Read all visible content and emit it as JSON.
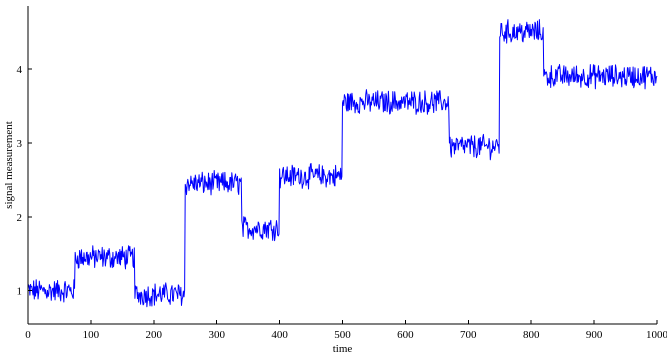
{
  "chart_data": {
    "type": "line",
    "title": "",
    "xlabel": "time",
    "ylabel": "signal measurement",
    "xlim": [
      0,
      1000
    ],
    "ylim": [
      0.55,
      4.85
    ],
    "grid": false,
    "xticks": [
      0,
      100,
      200,
      300,
      400,
      500,
      600,
      700,
      800,
      900,
      1000
    ],
    "yticks": [
      1,
      2,
      3,
      4
    ],
    "line_color": "#0000ff",
    "noise_amplitude": 0.14,
    "series": [
      {
        "segments": [
          {
            "x_start": 0,
            "x_end": 75,
            "level": 1.0
          },
          {
            "x_start": 75,
            "x_end": 170,
            "level": 1.45
          },
          {
            "x_start": 170,
            "x_end": 250,
            "level": 0.95
          },
          {
            "x_start": 250,
            "x_end": 340,
            "level": 2.45
          },
          {
            "x_start": 340,
            "x_end": 400,
            "level": 1.85
          },
          {
            "x_start": 400,
            "x_end": 500,
            "level": 2.55
          },
          {
            "x_start": 500,
            "x_end": 670,
            "level": 3.55
          },
          {
            "x_start": 670,
            "x_end": 750,
            "level": 2.95
          },
          {
            "x_start": 750,
            "x_end": 820,
            "level": 4.5
          },
          {
            "x_start": 820,
            "x_end": 1000,
            "level": 3.9
          }
        ]
      }
    ]
  }
}
